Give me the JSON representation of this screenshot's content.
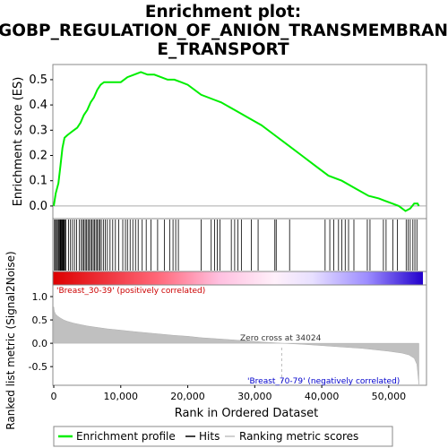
{
  "chart_data": [
    {
      "type": "line",
      "panel": "enrichment-profile",
      "title_lines": [
        "Enrichment plot:",
        "GOBP_REGULATION_OF_ANION_TRANSMEMBRAN",
        "E_TRANSPORT"
      ],
      "ylabel": "Enrichment score (ES)",
      "ylim": [
        -0.05,
        0.56
      ],
      "yticks": [
        0.0,
        0.1,
        0.2,
        0.3,
        0.4,
        0.5
      ],
      "ytick_labels": [
        "0.0",
        "0.1",
        "0.2",
        "0.3",
        "0.4",
        "0.5"
      ],
      "xlim": [
        0,
        55500
      ],
      "series": [
        {
          "name": "Enrichment profile",
          "color": "#00ee00",
          "x": [
            0,
            300,
            700,
            1000,
            1300,
            1600,
            2000,
            2500,
            3000,
            3500,
            4000,
            4500,
            5000,
            5500,
            6000,
            6500,
            7000,
            7500,
            8000,
            9000,
            10000,
            11000,
            12000,
            13000,
            14000,
            15000,
            16000,
            17000,
            18000,
            19000,
            20000,
            22000,
            24000,
            25000,
            27000,
            29000,
            31000,
            33000,
            35000,
            37000,
            39000,
            41000,
            43000,
            45000,
            47000,
            48500,
            49500,
            50500,
            51500,
            52500,
            53200,
            53800,
            54300,
            54500
          ],
          "y": [
            0.0,
            0.05,
            0.09,
            0.16,
            0.23,
            0.27,
            0.28,
            0.29,
            0.3,
            0.31,
            0.33,
            0.36,
            0.38,
            0.41,
            0.43,
            0.46,
            0.48,
            0.49,
            0.49,
            0.49,
            0.49,
            0.51,
            0.52,
            0.53,
            0.52,
            0.52,
            0.51,
            0.5,
            0.5,
            0.49,
            0.48,
            0.44,
            0.42,
            0.41,
            0.38,
            0.35,
            0.32,
            0.28,
            0.24,
            0.2,
            0.16,
            0.12,
            0.1,
            0.07,
            0.04,
            0.03,
            0.02,
            0.01,
            0.0,
            -0.02,
            -0.01,
            0.01,
            0.01,
            0.0
          ]
        }
      ]
    },
    {
      "type": "scatter",
      "panel": "hits",
      "name": "Hits",
      "color": "#000000",
      "xlim": [
        0,
        55500
      ],
      "x": [
        100,
        250,
        400,
        550,
        700,
        820,
        950,
        1050,
        1150,
        1250,
        1350,
        1450,
        1550,
        1650,
        1800,
        2200,
        2500,
        2800,
        3100,
        3400,
        3800,
        4100,
        4300,
        4500,
        4700,
        4900,
        5100,
        5300,
        5500,
        5700,
        5900,
        6100,
        6300,
        6500,
        6700,
        6900,
        7100,
        7400,
        7700,
        8000,
        8400,
        8800,
        9200,
        9700,
        10300,
        10700,
        11000,
        11400,
        11800,
        12200,
        12600,
        13200,
        13800,
        14500,
        15500,
        16500,
        17300,
        17800,
        18200,
        18600,
        22000,
        23500,
        24000,
        24400,
        24800,
        26500,
        27000,
        27500,
        28000,
        29500,
        30500,
        33000,
        33200,
        35200,
        40500,
        41200,
        41800,
        42500,
        43000,
        43500,
        44000,
        44800,
        46800,
        47200,
        49200,
        49600,
        50600,
        51300,
        52600,
        52900,
        53200,
        53600,
        53900,
        54200
      ],
      "label": "Hits"
    },
    {
      "type": "area",
      "panel": "ranked-metric",
      "ylabel": "Ranked list metric (Signal2Noise)",
      "xlabel": "Rank in Ordered Dataset",
      "ylim": [
        -0.9,
        1.25
      ],
      "yticks": [
        -0.5,
        0.0,
        0.5,
        1.0
      ],
      "ytick_labels": [
        "-0.5",
        "0.0",
        "0.5",
        "1.0"
      ],
      "xticks": [
        0,
        10000,
        20000,
        30000,
        40000,
        50000
      ],
      "xtick_labels": [
        "0",
        "10,000",
        "20,000",
        "30,000",
        "40,000",
        "50,000"
      ],
      "xlim": [
        0,
        55500
      ],
      "name": "Ranking metric scores",
      "color": "#c0c0c0",
      "x": [
        0,
        100,
        300,
        600,
        1000,
        1500,
        2000,
        3000,
        4000,
        5000,
        6000,
        8000,
        10000,
        12000,
        15000,
        18000,
        20000,
        22000,
        25000,
        28000,
        31000,
        34024,
        37000,
        40000,
        43000,
        46000,
        48000,
        50000,
        52000,
        53000,
        53800,
        54200,
        54500
      ],
      "y": [
        0.78,
        0.68,
        0.62,
        0.58,
        0.54,
        0.5,
        0.47,
        0.43,
        0.4,
        0.37,
        0.35,
        0.31,
        0.28,
        0.25,
        0.21,
        0.17,
        0.15,
        0.12,
        0.09,
        0.06,
        0.03,
        0.0,
        -0.02,
        -0.05,
        -0.08,
        -0.11,
        -0.14,
        -0.17,
        -0.21,
        -0.25,
        -0.32,
        -0.45,
        -0.88
      ]
    }
  ],
  "annotations": {
    "positive_label": "'Breast_30-39' (positively correlated)",
    "negative_label": "'Breast_70-79' (negatively correlated)",
    "zero_cross": "Zero cross at 34024",
    "zero_cross_x": 34024,
    "positive_color": "#cc0000",
    "negative_color": "#0000cc"
  },
  "legend": {
    "items": [
      {
        "label": "Enrichment profile",
        "color": "#00ee00"
      },
      {
        "label": "Hits",
        "color": "#000000"
      },
      {
        "label": "Ranking metric scores",
        "color": "#c0c0c0"
      }
    ]
  }
}
